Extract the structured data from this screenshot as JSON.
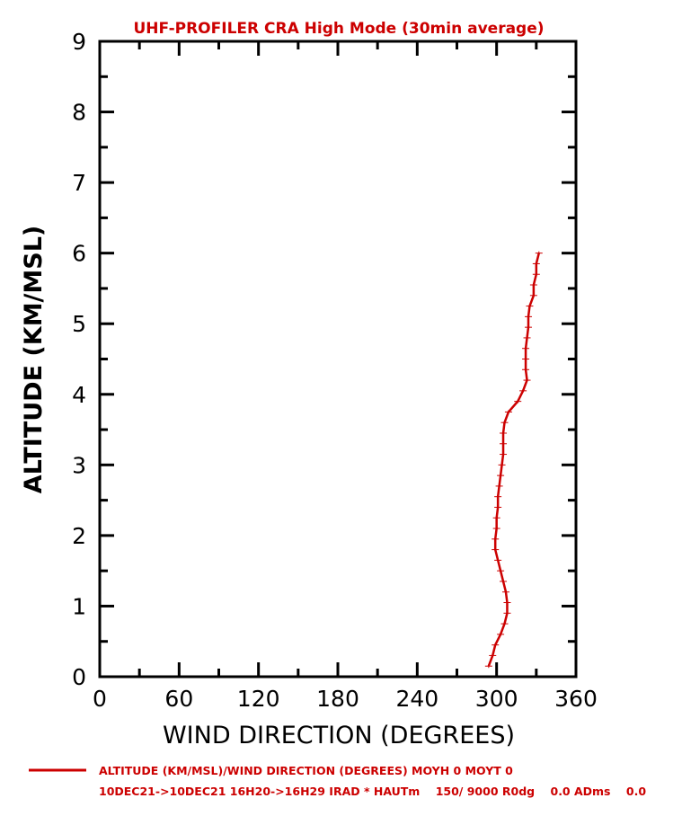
{
  "chart_data": {
    "type": "line",
    "title": "UHF-PROFILER CRA High Mode (30min average)",
    "xlabel": "WIND DIRECTION (DEGREES)",
    "ylabel": "ALTITUDE (KM/MSL)",
    "xlim": [
      0,
      360
    ],
    "ylim": [
      0,
      9
    ],
    "xticks": [
      "0",
      "60",
      "120",
      "180",
      "240",
      "300",
      "360"
    ],
    "yticks": [
      "0",
      "1",
      "2",
      "3",
      "4",
      "5",
      "6",
      "7",
      "8",
      "9"
    ],
    "grid": false,
    "line_color": "#cc0000",
    "series": [
      {
        "name": "ALTITUDE (KM/MSL)/WIND DIRECTION (DEGREES) MOYH 0 MOYT 0",
        "points": [
          {
            "x": 294,
            "y": 0.15
          },
          {
            "x": 297,
            "y": 0.3
          },
          {
            "x": 299,
            "y": 0.45
          },
          {
            "x": 303,
            "y": 0.6
          },
          {
            "x": 306,
            "y": 0.75
          },
          {
            "x": 308,
            "y": 0.9
          },
          {
            "x": 308,
            "y": 1.05
          },
          {
            "x": 307,
            "y": 1.2
          },
          {
            "x": 305,
            "y": 1.35
          },
          {
            "x": 303,
            "y": 1.5
          },
          {
            "x": 301,
            "y": 1.65
          },
          {
            "x": 299,
            "y": 1.8
          },
          {
            "x": 299,
            "y": 1.95
          },
          {
            "x": 300,
            "y": 2.1
          },
          {
            "x": 300,
            "y": 2.25
          },
          {
            "x": 301,
            "y": 2.4
          },
          {
            "x": 301,
            "y": 2.55
          },
          {
            "x": 302,
            "y": 2.7
          },
          {
            "x": 303,
            "y": 2.85
          },
          {
            "x": 304,
            "y": 3.0
          },
          {
            "x": 305,
            "y": 3.15
          },
          {
            "x": 305,
            "y": 3.3
          },
          {
            "x": 305,
            "y": 3.45
          },
          {
            "x": 306,
            "y": 3.6
          },
          {
            "x": 309,
            "y": 3.75
          },
          {
            "x": 316,
            "y": 3.9
          },
          {
            "x": 320,
            "y": 4.05
          },
          {
            "x": 323,
            "y": 4.2
          },
          {
            "x": 322,
            "y": 4.35
          },
          {
            "x": 322,
            "y": 4.5
          },
          {
            "x": 322,
            "y": 4.65
          },
          {
            "x": 323,
            "y": 4.8
          },
          {
            "x": 324,
            "y": 4.95
          },
          {
            "x": 324,
            "y": 5.1
          },
          {
            "x": 325,
            "y": 5.25
          },
          {
            "x": 328,
            "y": 5.4
          },
          {
            "x": 328,
            "y": 5.55
          },
          {
            "x": 330,
            "y": 5.7
          },
          {
            "x": 330,
            "y": 5.85
          },
          {
            "x": 332,
            "y": 6.0
          }
        ]
      }
    ]
  },
  "footer": {
    "legend_label": "ALTITUDE (KM/MSL)/WIND DIRECTION (DEGREES) MOYH 0 MOYT 0",
    "info_line": "10DEC21->10DEC21 16H20->16H29 IRAD * HAUTm    150/ 9000 R0dg    0.0 ADms    0.0"
  }
}
